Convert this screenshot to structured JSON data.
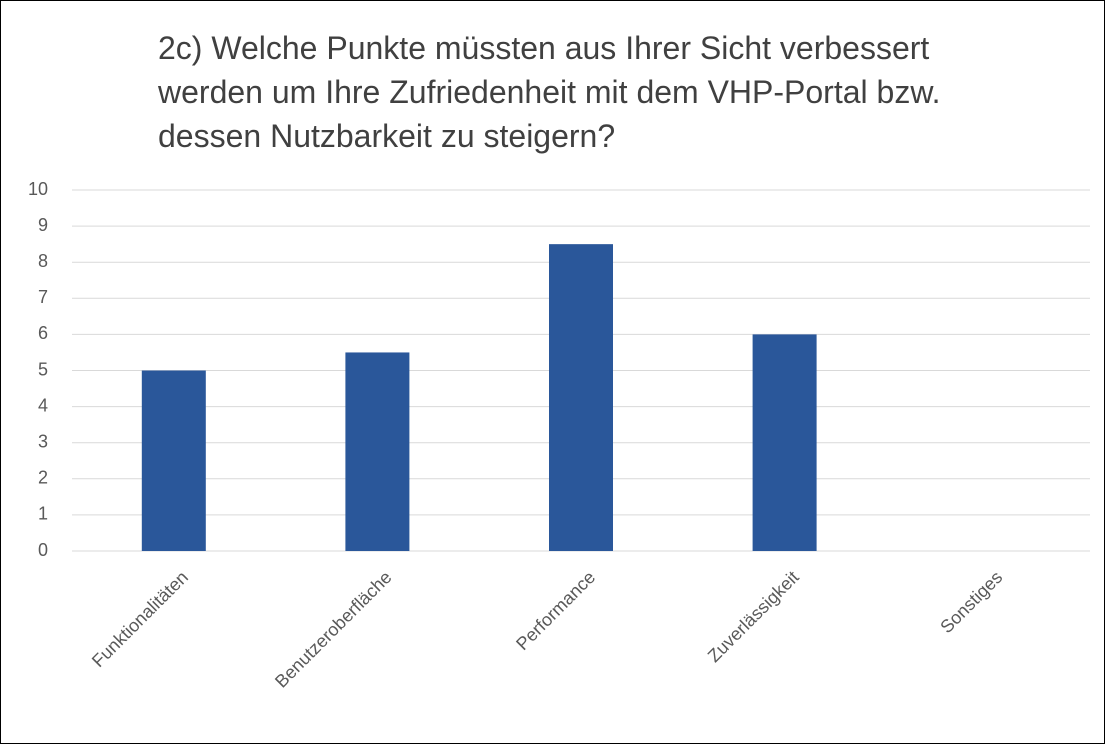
{
  "chart_data": {
    "type": "bar",
    "title": "2c) Welche Punkte müssten aus Ihrer Sicht verbessert werden um Ihre Zufriedenheit mit dem VHP-Portal bzw. dessen Nutzbarkeit zu steigern?",
    "categories": [
      "Funktionalitäten",
      "Benutzeroberfläche",
      "Performance",
      "Zuverlässigkeit",
      "Sonstiges"
    ],
    "values": [
      5,
      5.5,
      8.5,
      6,
      0
    ],
    "color": "#2a579a",
    "ylim": [
      0,
      10
    ],
    "yticks": [
      0,
      1,
      2,
      3,
      4,
      5,
      6,
      7,
      8,
      9,
      10
    ],
    "grid": true
  }
}
